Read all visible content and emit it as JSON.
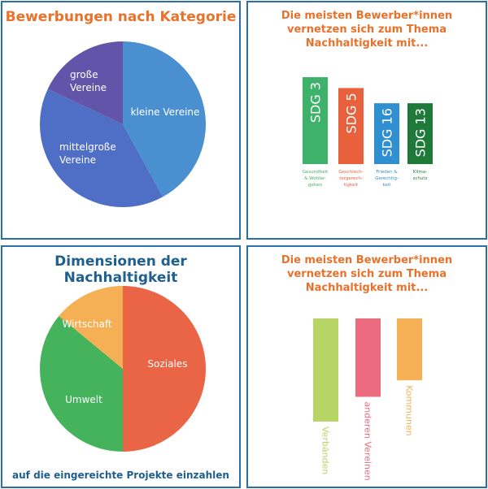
{
  "panels": {
    "kategorie": {
      "title": "Bewerbungen nach Kategorie"
    },
    "sdg": {
      "title": "Die meisten Bewerber*innen vernetzen sich zum Thema Nachhaltigkeit mit..."
    },
    "dimensionen": {
      "title": "Dimensionen der Nachhaltigkeit",
      "footer": "auf die eingereichte Projekte einzahlen"
    },
    "partner": {
      "title": "Die meisten Bewerber*innen vernetzen sich zum Thema Nachhaltigkeit mit..."
    }
  },
  "chart_data": [
    {
      "type": "pie",
      "title": "Bewerbungen nach Kategorie",
      "slices": [
        {
          "label": "kleine Vereine",
          "value": 42,
          "color": "#4a8fd0"
        },
        {
          "label": "mittelgroße Vereine",
          "value": 40,
          "color": "#4f6fc7"
        },
        {
          "label": "große Vereine",
          "value": 18,
          "color": "#6254a8"
        }
      ]
    },
    {
      "type": "bar",
      "title": "Die meisten Bewerber*innen vernetzen sich zum Thema Nachhaltigkeit mit...",
      "categories": [
        "SDG 3",
        "SDG 5",
        "SDG 16",
        "SDG 13"
      ],
      "values": [
        4,
        3.5,
        2.8,
        2.8
      ],
      "colors": [
        "#3eb26b",
        "#e8603c",
        "#2f8fd0",
        "#1f7a3a"
      ],
      "descriptions": [
        [
          "Gesundheit",
          "& Wohler-",
          "gehen"
        ],
        [
          "Geschlech-",
          "tergerech-",
          "tigkeit"
        ],
        [
          "Frieden &",
          "Gerechtig-",
          "keit"
        ],
        [
          "Klima-",
          "schutz"
        ]
      ]
    },
    {
      "type": "pie",
      "title": "Dimensionen der Nachhaltigkeit",
      "slices": [
        {
          "label": "Soziales",
          "value": 50,
          "color": "#ea6446"
        },
        {
          "label": "Umwelt",
          "value": 36,
          "color": "#45b35c"
        },
        {
          "label": "Wirtschaft",
          "value": 14,
          "color": "#f5af55"
        }
      ]
    },
    {
      "type": "bar",
      "title": "Die meisten Bewerber*innen vernetzen sich zum Thema Nachhaltigkeit mit...",
      "categories": [
        "Verbänden",
        "anderen Vereinen",
        "Kommunen"
      ],
      "values": [
        5,
        3.8,
        3
      ],
      "colors": [
        "#b7d565",
        "#ec6b7e",
        "#f6b156"
      ]
    }
  ]
}
